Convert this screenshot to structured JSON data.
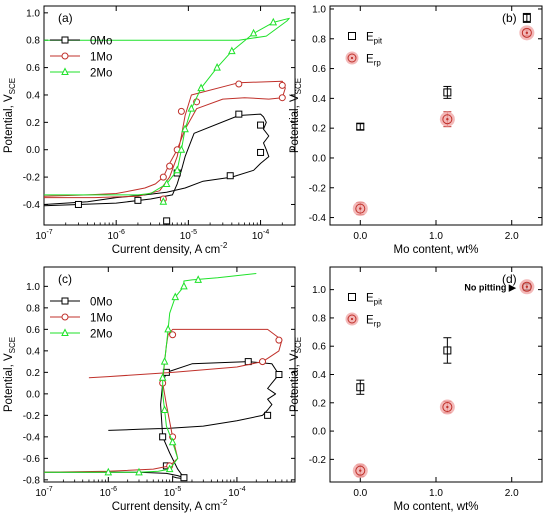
{
  "chart_data": [
    {
      "type": "line",
      "panel_label": "(a)",
      "xlabel": "Current density, A cm",
      "xlabel_sup": "-2",
      "ylabel": "Potential, V",
      "ylabel_sub": "SCE",
      "xscale": "log",
      "xlim": [
        1e-07,
        0.0003
      ],
      "ylim": [
        -0.55,
        1.05
      ],
      "x_ticks": [
        {
          "value": 1e-07,
          "base": "10",
          "exp": "-7"
        },
        {
          "value": 1e-06,
          "base": "10",
          "exp": "-6"
        },
        {
          "value": 1e-05,
          "base": "10",
          "exp": "-5"
        },
        {
          "value": 0.0001,
          "base": "10",
          "exp": "-4"
        }
      ],
      "y_ticks": [
        "-0.4",
        "-0.2",
        "0.0",
        "0.2",
        "0.4",
        "0.6",
        "0.8",
        "1.0"
      ],
      "y_tick_values": [
        -0.4,
        -0.2,
        0.0,
        0.2,
        0.4,
        0.6,
        0.8,
        1.0
      ],
      "legend": "top-left",
      "series": [
        {
          "name": "0Mo",
          "color": "#000000",
          "marker": "square",
          "x": [
            1e-07,
            3e-07,
            1e-06,
            3e-06,
            6e-06,
            7e-06,
            8e-06,
            9e-06,
            1.2e-05,
            5e-05,
            0.0001,
            0.00011,
            0.00012,
            0.00011,
            0.00013,
            0.00011,
            0.00012,
            0.00013,
            0.0001,
            8e-05,
            4e-05,
            1.6e-05,
            9e-06,
            5e-06,
            2.5e-06,
            1e-06,
            4e-07,
            1e-07
          ],
          "y": [
            -0.41,
            -0.4,
            -0.39,
            -0.36,
            -0.33,
            -0.25,
            -0.15,
            -0.05,
            0.12,
            0.25,
            0.26,
            0.24,
            0.2,
            0.15,
            0.1,
            0.05,
            0.0,
            -0.05,
            -0.1,
            -0.15,
            -0.2,
            -0.23,
            -0.28,
            -0.31,
            -0.33,
            -0.35,
            -0.38,
            -0.4
          ],
          "marker_x": [
            3e-07,
            2e-06,
            7e-06,
            5e-05,
            0.0001,
            0.0001,
            3.8e-05,
            5e-06
          ],
          "marker_y": [
            -0.4,
            -0.37,
            -0.17,
            0.26,
            0.18,
            -0.02,
            -0.19,
            -0.52
          ]
        },
        {
          "name": "1Mo",
          "color": "#c0312b",
          "marker": "circle",
          "x": [
            1e-07,
            5e-07,
            1e-06,
            2e-06,
            4e-06,
            5.5e-06,
            7e-06,
            8e-06,
            9e-06,
            1.1e-05,
            5e-05,
            0.0002,
            0.00022,
            0.0002,
            0.00013,
            6e-05,
            3e-05,
            1.3e-05,
            9e-06,
            7e-06,
            5.5e-06,
            4.5e-06,
            3.5e-06,
            2.5e-06,
            1.6e-06,
            1e-06,
            4e-07,
            1e-07
          ],
          "y": [
            -0.35,
            -0.35,
            -0.345,
            -0.34,
            -0.3,
            -0.2,
            -0.05,
            0.1,
            0.25,
            0.4,
            0.49,
            0.5,
            0.45,
            0.38,
            0.37,
            0.38,
            0.37,
            0.3,
            0.15,
            0.0,
            -0.1,
            -0.2,
            -0.25,
            -0.28,
            -0.3,
            -0.32,
            -0.33,
            -0.34
          ],
          "marker_x": [
            4.5e-06,
            8e-06,
            5e-05,
            0.0002,
            0.0002,
            1.3e-05,
            7e-06,
            5.5e-06,
            4.5e-06
          ],
          "marker_y": [
            -0.2,
            0.28,
            0.48,
            0.47,
            0.38,
            0.35,
            0.0,
            -0.12,
            -0.36
          ]
        },
        {
          "name": "2Mo",
          "color": "#1fe22a",
          "marker": "triangle",
          "x": [
            1e-07,
            5e-07,
            1e-06,
            2e-06,
            3e-06,
            5e-06,
            7e-06,
            8e-06,
            9e-06,
            1.1e-05,
            1.5e-05,
            2.5e-05,
            4e-05,
            8e-05,
            0.00015,
            0.00025,
            0.00023,
            0.00012,
            5e-05,
            1.5e-05,
            3e-06,
            1e-06,
            5e-07,
            1e-07
          ],
          "y": [
            -0.33,
            -0.33,
            -0.33,
            -0.33,
            -0.32,
            -0.25,
            -0.15,
            0.0,
            0.15,
            0.3,
            0.45,
            0.6,
            0.72,
            0.85,
            0.93,
            0.96,
            0.94,
            0.83,
            0.8,
            0.8,
            0.8,
            0.8,
            0.8,
            0.8
          ],
          "marker_x": [
            5e-06,
            7e-06,
            8e-06,
            9e-06,
            1.1e-05,
            1.5e-05,
            2.5e-05,
            4e-05,
            8e-05,
            0.00015,
            4.5e-06
          ],
          "marker_y": [
            -0.25,
            -0.15,
            0.0,
            0.15,
            0.3,
            0.45,
            0.6,
            0.72,
            0.85,
            0.93,
            -0.38
          ]
        }
      ]
    },
    {
      "type": "scatter",
      "panel_label": "(b)",
      "xlabel": "Mo content, wt%",
      "ylabel": "Potential, V",
      "ylabel_sub": "SCE",
      "xlim": [
        -0.4,
        2.4
      ],
      "ylim": [
        -0.45,
        1.02
      ],
      "x_ticks": [
        "0.0",
        "1.0",
        "2.0"
      ],
      "x_tick_values": [
        0,
        1,
        2
      ],
      "y_ticks": [
        "-0.4",
        "-0.2",
        "0.0",
        "0.2",
        "0.4",
        "0.6",
        "0.8",
        "1.0"
      ],
      "y_tick_values": [
        -0.4,
        -0.2,
        0.0,
        0.2,
        0.4,
        0.6,
        0.8,
        1.0
      ],
      "legend": "top-left",
      "series": [
        {
          "name": "E",
          "name_sub": "pit",
          "color": "#000000",
          "marker": "square",
          "x": [
            0,
            1.15,
            2.2
          ],
          "y": [
            0.21,
            0.44,
            0.94
          ],
          "err": [
            0.02,
            0.04,
            0.03
          ]
        },
        {
          "name": "E",
          "name_sub": "rp",
          "color": "#c0312b",
          "marker": "circle",
          "x": [
            0,
            1.15,
            2.2
          ],
          "y": [
            -0.34,
            0.26,
            0.84
          ],
          "err": [
            0.04,
            0.05,
            0.02
          ]
        }
      ]
    },
    {
      "type": "line",
      "panel_label": "(c)",
      "xlabel": "Current density, A cm",
      "xlabel_sup": "-2",
      "ylabel": "Potential, V",
      "ylabel_sub": "SCE",
      "xscale": "log",
      "xlim": [
        1e-07,
        0.0008
      ],
      "ylim": [
        -0.82,
        1.18
      ],
      "x_ticks": [
        {
          "value": 1e-07,
          "base": "10",
          "exp": "-7"
        },
        {
          "value": 1e-06,
          "base": "10",
          "exp": "-6"
        },
        {
          "value": 1e-05,
          "base": "10",
          "exp": "-5"
        },
        {
          "value": 0.0001,
          "base": "10",
          "exp": "-4"
        }
      ],
      "y_ticks": [
        "-0.8",
        "-0.6",
        "-0.4",
        "-0.2",
        "0.0",
        "0.2",
        "0.4",
        "0.6",
        "0.8",
        "1.0"
      ],
      "y_tick_values": [
        -0.8,
        -0.6,
        -0.4,
        -0.2,
        0.0,
        0.2,
        0.4,
        0.6,
        0.8,
        1.0
      ],
      "legend": "top-left",
      "series": [
        {
          "name": "0Mo",
          "color": "#000000",
          "marker": "square",
          "x": [
            1e-07,
            3e-07,
            1e-06,
            3e-06,
            8e-06,
            1.2e-05,
            1.5e-05,
            1.2e-05,
            9e-06,
            7e-06,
            6.5e-06,
            7e-06,
            8e-06,
            2e-05,
            0.00015,
            0.00035,
            0.00045,
            0.00035,
            0.0003,
            0.0004,
            0.0003,
            0.00035,
            0.0003,
            0.00025,
            0.0001,
            3e-05,
            9e-06,
            3e-06,
            1e-06
          ],
          "y": [
            -0.73,
            -0.73,
            -0.73,
            -0.73,
            -0.74,
            -0.76,
            -0.78,
            -0.7,
            -0.55,
            -0.4,
            -0.1,
            0.1,
            0.2,
            0.28,
            0.3,
            0.28,
            0.18,
            0.1,
            0.05,
            0.0,
            -0.05,
            -0.1,
            -0.15,
            -0.2,
            -0.25,
            -0.3,
            -0.32,
            -0.33,
            -0.34
          ],
          "marker_x": [
            1.5e-05,
            7e-06,
            8e-06,
            0.00015,
            0.00045,
            0.0003,
            8e-06
          ],
          "marker_y": [
            -0.78,
            -0.4,
            0.2,
            0.3,
            0.18,
            -0.2,
            -0.67
          ],
          "extra_x": [
            1e-05,
            1e-05,
            1.15e-05,
            1.5e-05
          ],
          "extra_y": [
            -0.76,
            -0.77,
            -0.78,
            -0.79
          ]
        },
        {
          "name": "1Mo",
          "color": "#c0312b",
          "marker": "circle",
          "x": [
            1e-07,
            1e-06,
            5e-06,
            9e-06,
            1.2e-05,
            1e-05,
            8e-06,
            7e-06,
            7.5e-06,
            8e-06,
            8.5e-06,
            1e-05,
            5e-05,
            0.0003,
            0.0005,
            0.00045,
            0.0003,
            0.00025,
            0.0001,
            1e-05,
            1e-06,
            5e-07
          ],
          "y": [
            -0.73,
            -0.72,
            -0.7,
            -0.67,
            -0.6,
            -0.4,
            -0.1,
            0.1,
            0.3,
            0.45,
            0.55,
            0.6,
            0.6,
            0.6,
            0.5,
            0.4,
            0.33,
            0.3,
            0.25,
            0.2,
            0.16,
            0.15
          ],
          "marker_x": [
            9e-06,
            1e-05,
            7e-06,
            1e-05,
            0.00045,
            0.00025
          ],
          "marker_y": [
            -0.67,
            -0.4,
            0.1,
            0.55,
            0.5,
            0.3
          ]
        },
        {
          "name": "2Mo",
          "color": "#1fe22a",
          "marker": "triangle",
          "x": [
            1e-07,
            1e-06,
            3e-06,
            6e-06,
            9e-06,
            1.2e-05,
            1e-05,
            8e-06,
            7.5e-06,
            7e-06,
            7e-06,
            7.5e-06,
            8e-06,
            8.5e-06,
            9e-06,
            1.1e-05,
            1.5e-05,
            1.5e-05,
            2e-05,
            5e-05,
            0.0002
          ],
          "y": [
            -0.73,
            -0.73,
            -0.73,
            -0.72,
            -0.7,
            -0.6,
            -0.45,
            -0.3,
            -0.15,
            0.0,
            0.15,
            0.3,
            0.45,
            0.6,
            0.75,
            0.9,
            1.0,
            1.05,
            1.06,
            1.08,
            1.12
          ],
          "marker_x": [
            3e-06,
            9e-06,
            1e-05,
            7.5e-06,
            7e-06,
            7.5e-06,
            8.5e-06,
            1.1e-05,
            1.5e-05,
            2.5e-05,
            1e-06
          ],
          "marker_y": [
            -0.73,
            -0.7,
            -0.45,
            -0.15,
            0.15,
            0.3,
            0.6,
            0.9,
            1.0,
            1.06,
            -0.73
          ]
        }
      ]
    },
    {
      "type": "scatter",
      "panel_label": "(d)",
      "xlabel": "Mo content, wt%",
      "ylabel": "Potential, V",
      "ylabel_sub": "SCE",
      "xlim": [
        -0.4,
        2.4
      ],
      "ylim": [
        -0.36,
        1.16
      ],
      "x_ticks": [
        "0.0",
        "1.0",
        "2.0"
      ],
      "x_tick_values": [
        0,
        1,
        2
      ],
      "y_ticks": [
        "-0.2",
        "0.0",
        "0.2",
        "0.4",
        "0.6",
        "0.8",
        "1.0"
      ],
      "y_tick_values": [
        -0.2,
        0.0,
        0.2,
        0.4,
        0.6,
        0.8,
        1.0
      ],
      "legend": "top-left",
      "annotation": "No pitting ▶",
      "series": [
        {
          "name": "E",
          "name_sub": "pit",
          "color": "#000000",
          "marker": "square",
          "x": [
            0,
            1.15,
            2.2
          ],
          "y": [
            0.31,
            0.57,
            1.02
          ],
          "err": [
            0.05,
            0.09,
            0.02
          ]
        },
        {
          "name": "E",
          "name_sub": "rp",
          "color": "#c0312b",
          "marker": "circle",
          "x": [
            0,
            1.15,
            2.2
          ],
          "y": [
            -0.28,
            0.17,
            1.02
          ],
          "err": [
            0.04,
            0.04,
            0.0
          ]
        }
      ]
    }
  ]
}
